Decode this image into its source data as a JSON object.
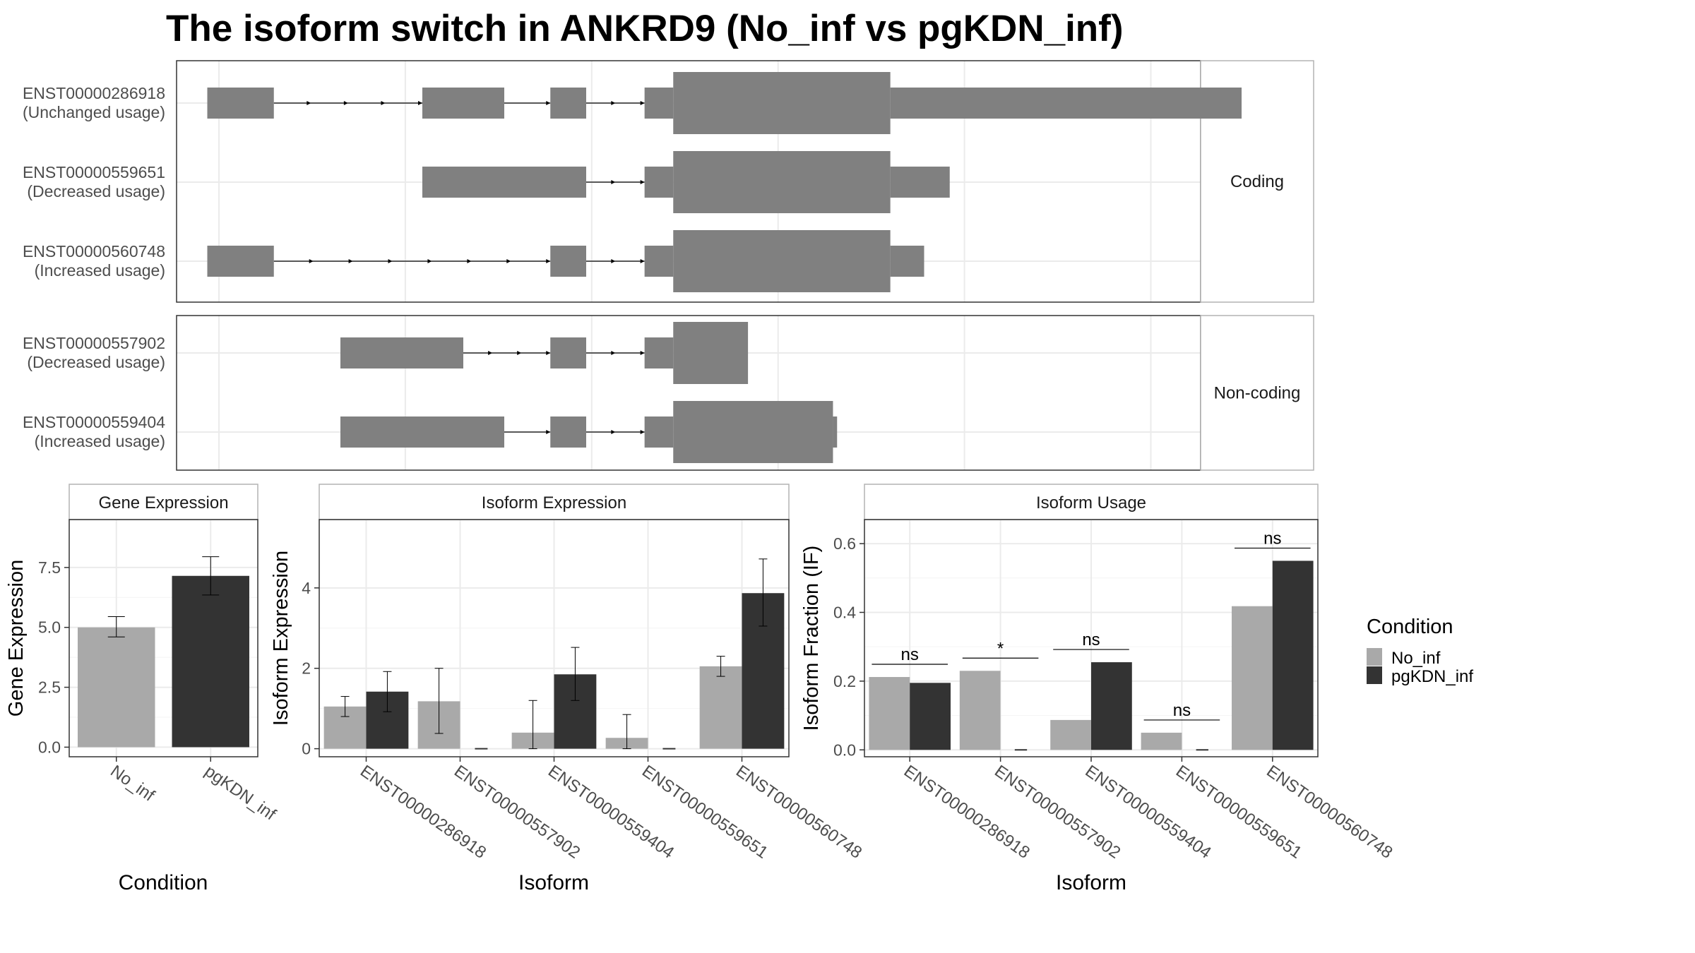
{
  "title": "The isoform switch in ANKRD9 (No_inf vs pgKDN_inf)",
  "colors": {
    "No_inf": "#a9a9a9",
    "pgKDN_inf": "#333333",
    "exon": "#808080",
    "grid": "#ebebeb"
  },
  "chart_data": [
    {
      "type": "structure",
      "facets": [
        {
          "label": "Coding",
          "transcripts": [
            {
              "id": "ENST00000286918",
              "usage": "(Unchanged usage)",
              "exons": [
                [
                  0.03,
                  0.095,
                  "utr"
                ],
                [
                  0.24,
                  0.32,
                  "utr"
                ],
                [
                  0.365,
                  0.4,
                  "utr"
                ],
                [
                  0.457,
                  0.485,
                  "utr"
                ],
                [
                  0.485,
                  0.697,
                  "cds"
                ],
                [
                  0.697,
                  1.04,
                  "utr"
                ]
              ],
              "introns": [
                [
                  0.095,
                  0.24,
                  3
                ],
                [
                  0.32,
                  0.365,
                  0
                ],
                [
                  0.4,
                  0.457,
                  1
                ]
              ]
            },
            {
              "id": "ENST00000559651",
              "usage": "(Decreased usage)",
              "exons": [
                [
                  0.24,
                  0.4,
                  "utr"
                ],
                [
                  0.457,
                  0.485,
                  "utr"
                ],
                [
                  0.485,
                  0.697,
                  "cds"
                ],
                [
                  0.697,
                  0.755,
                  "utr"
                ]
              ],
              "introns": [
                [
                  0.4,
                  0.457,
                  1
                ]
              ]
            },
            {
              "id": "ENST00000560748",
              "usage": "(Increased usage)",
              "exons": [
                [
                  0.03,
                  0.095,
                  "utr"
                ],
                [
                  0.365,
                  0.4,
                  "utr"
                ],
                [
                  0.457,
                  0.485,
                  "utr"
                ],
                [
                  0.485,
                  0.697,
                  "cds"
                ],
                [
                  0.697,
                  0.73,
                  "utr"
                ]
              ],
              "introns": [
                [
                  0.095,
                  0.365,
                  6
                ],
                [
                  0.4,
                  0.457,
                  1
                ]
              ]
            }
          ]
        },
        {
          "label": "Non-coding",
          "transcripts": [
            {
              "id": "ENST00000557902",
              "usage": "(Decreased usage)",
              "exons": [
                [
                  0.16,
                  0.28,
                  "utr"
                ],
                [
                  0.365,
                  0.4,
                  "utr"
                ],
                [
                  0.457,
                  0.485,
                  "utr"
                ],
                [
                  0.485,
                  0.558,
                  "cds"
                ]
              ],
              "introns": [
                [
                  0.28,
                  0.365,
                  2
                ],
                [
                  0.4,
                  0.457,
                  1
                ]
              ]
            },
            {
              "id": "ENST00000559404",
              "usage": "(Increased usage)",
              "exons": [
                [
                  0.16,
                  0.32,
                  "utr"
                ],
                [
                  0.365,
                  0.4,
                  "utr"
                ],
                [
                  0.457,
                  0.485,
                  "utr"
                ],
                [
                  0.485,
                  0.641,
                  "cds"
                ],
                [
                  0.641,
                  0.645,
                  "utr"
                ]
              ],
              "introns": [
                [
                  0.32,
                  0.365,
                  0
                ],
                [
                  0.4,
                  0.457,
                  1
                ]
              ]
            }
          ]
        }
      ]
    },
    {
      "type": "bar",
      "strip": "Gene Expression",
      "xlabel": "Condition",
      "ylabel": "Gene Expression",
      "categories": [
        "No_inf",
        "pgKDN_inf"
      ],
      "values": [
        5.0,
        7.15
      ],
      "err_low": [
        4.6,
        6.35
      ],
      "err_high": [
        5.45,
        7.95
      ],
      "ylim": [
        -0.4,
        9.5
      ],
      "yticks": [
        "0.0",
        "2.5",
        "5.0",
        "7.5"
      ]
    },
    {
      "type": "bar",
      "strip": "Isoform Expression",
      "xlabel": "Isoform",
      "ylabel": "Isoform Expression",
      "categories": [
        "ENST00000286918",
        "ENST00000557902",
        "ENST00000559404",
        "ENST00000559651",
        "ENST00000560748"
      ],
      "series": [
        {
          "name": "No_inf",
          "values": [
            1.05,
            1.18,
            0.4,
            0.27,
            2.05
          ],
          "err_low": [
            0.8,
            0.38,
            0.0,
            0.0,
            1.8
          ],
          "err_high": [
            1.3,
            2.0,
            1.2,
            0.85,
            2.3
          ]
        },
        {
          "name": "pgKDN_inf",
          "values": [
            1.42,
            0.0,
            1.85,
            0.0,
            3.87
          ],
          "err_low": [
            0.92,
            0.0,
            1.2,
            0.0,
            3.05
          ],
          "err_high": [
            1.92,
            0.0,
            2.52,
            0.0,
            4.72
          ]
        }
      ],
      "ylim": [
        -0.2,
        5.7
      ],
      "yticks": [
        "0",
        "2",
        "4"
      ]
    },
    {
      "type": "bar",
      "strip": "Isoform Usage",
      "xlabel": "Isoform",
      "ylabel": "Isoform Fraction (IF)",
      "categories": [
        "ENST00000286918",
        "ENST00000557902",
        "ENST00000559404",
        "ENST00000559651",
        "ENST00000560748"
      ],
      "series": [
        {
          "name": "No_inf",
          "values": [
            0.212,
            0.23,
            0.087,
            0.05,
            0.418
          ]
        },
        {
          "name": "pgKDN_inf",
          "values": [
            0.195,
            0.0,
            0.255,
            0.0,
            0.55
          ]
        }
      ],
      "significance": [
        "ns",
        "*",
        "ns",
        "ns",
        "ns"
      ],
      "ylim": [
        -0.02,
        0.67
      ],
      "yticks": [
        "0.0",
        "0.2",
        "0.4",
        "0.6"
      ]
    }
  ],
  "legend": {
    "title": "Condition",
    "entries": [
      "No_inf",
      "pgKDN_inf"
    ]
  }
}
